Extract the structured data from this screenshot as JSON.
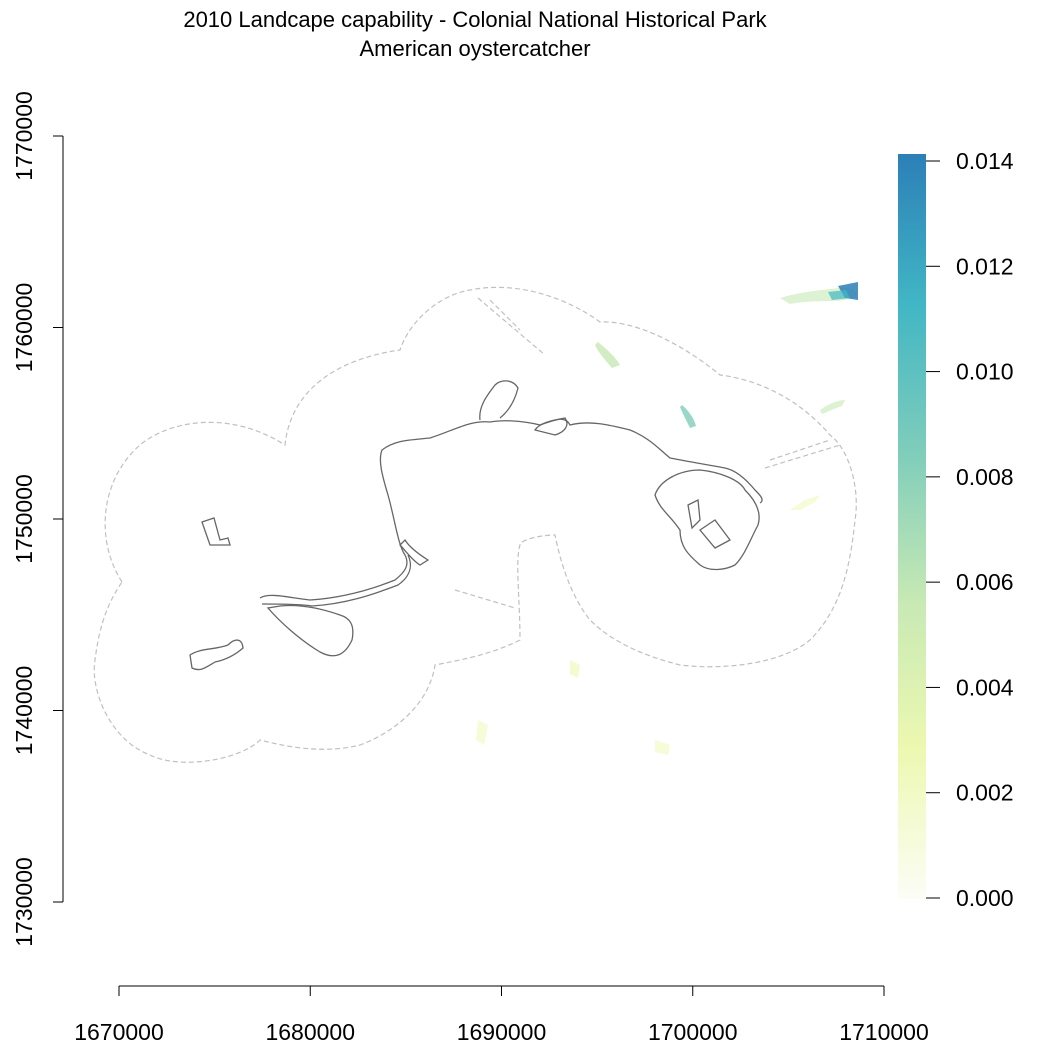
{
  "title": {
    "line1": "2010 Landcape capability - Colonial National Historical Park",
    "line2": "American oystercatcher"
  },
  "x_axis": {
    "range": [
      1670000,
      1710000
    ],
    "ticks": [
      {
        "value": 1670000,
        "label": "1670000"
      },
      {
        "value": 1680000,
        "label": "1680000"
      },
      {
        "value": 1690000,
        "label": "1690000"
      },
      {
        "value": 1700000,
        "label": "1700000"
      },
      {
        "value": 1710000,
        "label": "1710000"
      }
    ]
  },
  "y_axis": {
    "range": [
      1730000,
      1770000
    ],
    "ticks": [
      {
        "value": 1730000,
        "label": "1730000"
      },
      {
        "value": 1740000,
        "label": "1740000"
      },
      {
        "value": 1750000,
        "label": "1750000"
      },
      {
        "value": 1760000,
        "label": "1760000"
      },
      {
        "value": 1770000,
        "label": "1770000"
      }
    ]
  },
  "legend": {
    "min": 0.0,
    "max": 0.014,
    "colors": [
      "#fcfdf6",
      "#edf8b1",
      "#c7e9b4",
      "#7fcdbb",
      "#41b6c4",
      "#2c7fb8"
    ],
    "ticks": [
      {
        "value": 0.0,
        "label": "0.000"
      },
      {
        "value": 0.002,
        "label": "0.002"
      },
      {
        "value": 0.004,
        "label": "0.004"
      },
      {
        "value": 0.006,
        "label": "0.006"
      },
      {
        "value": 0.008,
        "label": "0.008"
      },
      {
        "value": 0.01,
        "label": "0.010"
      },
      {
        "value": 0.012,
        "label": "0.012"
      },
      {
        "value": 0.014,
        "label": "0.014"
      }
    ]
  },
  "colors": {
    "park_boundary": "#666666",
    "buffer_outline": "#c0c0c0",
    "axis": "#000000"
  }
}
